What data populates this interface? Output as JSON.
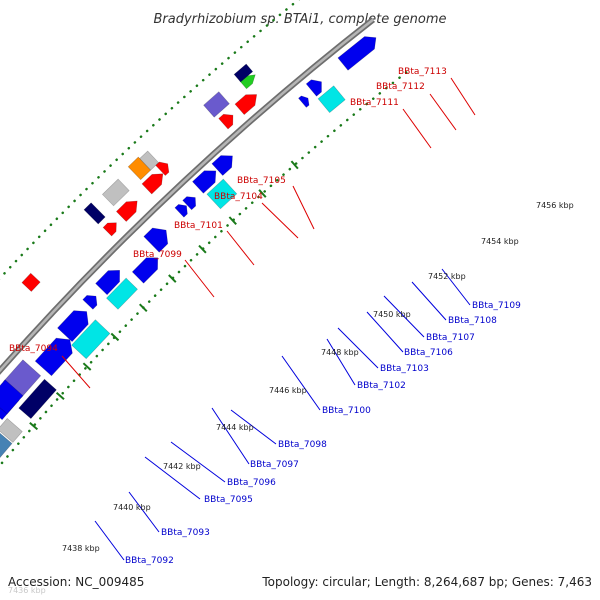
{
  "title": "Bradyrhizobium sp. BTAi1, complete genome",
  "footer": {
    "accession": "Accession: NC_009485",
    "summary": "Topology: circular; Length: 8,264,687 bp; Genes: 7,463"
  },
  "colors": {
    "backbone": "#9a9a9a",
    "tick": "#1a7a1a",
    "label_forward": "#cc0000",
    "label_reverse": "#0000cc",
    "line_forward": "#dd0000",
    "line_reverse": "#0000dd",
    "gene_red": "#ff0000",
    "gene_blue": "#0000ee",
    "gene_navy": "#000066",
    "gene_slate": "#6a5acd",
    "gene_cyan": "#00e5e5",
    "gene_gray": "#c0c0c0",
    "gene_orange": "#ff8c00",
    "gene_green": "#22cc22",
    "gene_steel": "#4682b4"
  },
  "ticks": [
    {
      "label": "7438 kbp"
    },
    {
      "label": "7440 kbp"
    },
    {
      "label": "7442 kbp"
    },
    {
      "label": "7444 kbp"
    },
    {
      "label": "7446 kbp"
    },
    {
      "label": "7448 kbp"
    },
    {
      "label": "7450 kbp"
    },
    {
      "label": "7452 kbp"
    },
    {
      "label": "7454 kbp"
    },
    {
      "label": "7456 kbp"
    }
  ],
  "faint_label": "7436 kbp",
  "labels_forward": [
    "BBta_7094",
    "BBta_7099",
    "BBta_7101",
    "BBta_7104",
    "BBta_7105",
    "BBta_7111",
    "BBta_7112",
    "BBta_7113"
  ],
  "labels_reverse": [
    "BBta_7092",
    "BBta_7093",
    "BBta_7095",
    "BBta_7096",
    "BBta_7097",
    "BBta_7098",
    "BBta_7100",
    "BBta_7102",
    "BBta_7103",
    "BBta_7106",
    "BBta_7107",
    "BBta_7108",
    "BBta_7109"
  ]
}
